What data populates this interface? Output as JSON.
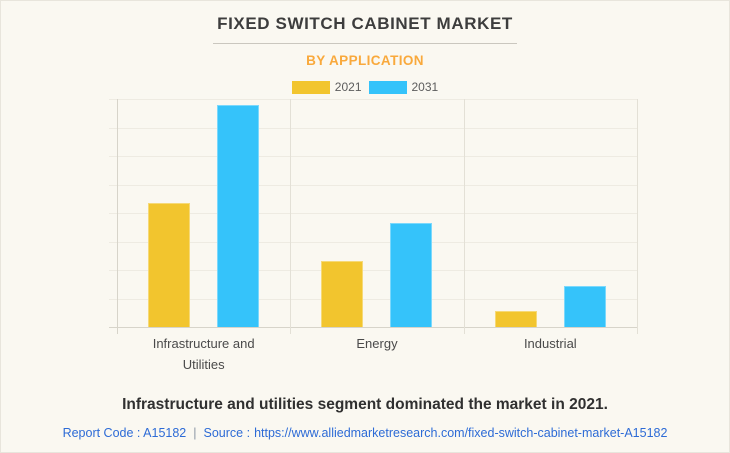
{
  "header": {
    "title": "FIXED SWITCH CABINET MARKET",
    "subtitle": "BY APPLICATION"
  },
  "chart_data": {
    "type": "bar",
    "title": "FIXED SWITCH CABINET MARKET",
    "subtitle": "BY APPLICATION",
    "categories": [
      "Infrastructure and Utilities",
      "Energy",
      "Industrial"
    ],
    "series": [
      {
        "name": "2021",
        "color": "#f2c52e",
        "values": [
          4.35,
          2.3,
          0.55
        ]
      },
      {
        "name": "2031",
        "color": "#35c3fa",
        "values": [
          7.8,
          3.65,
          1.45
        ]
      }
    ],
    "xlabel": "",
    "ylabel": "",
    "ylim": [
      0,
      8
    ],
    "y_tick_labels_visible": false,
    "grid": true,
    "legend_position": "top",
    "legend_entries": [
      "2021",
      "2031"
    ]
  },
  "footer": {
    "statement": "Infrastructure and utilities segment dominated the market in 2021.",
    "report_code": "Report Code : A15182",
    "separator": "|",
    "source_prefix": "Source :",
    "source_url": "https://www.alliedmarketresearch.com/fixed-switch-cabinet-market-A15182"
  },
  "colors": {
    "background": "#faf8f1",
    "series_2021": "#f2c52e",
    "series_2031": "#35c3fa",
    "subtitle_accent": "#f9a93c",
    "footer_link": "#2d6bd6",
    "title_text": "#3d3d3d"
  }
}
